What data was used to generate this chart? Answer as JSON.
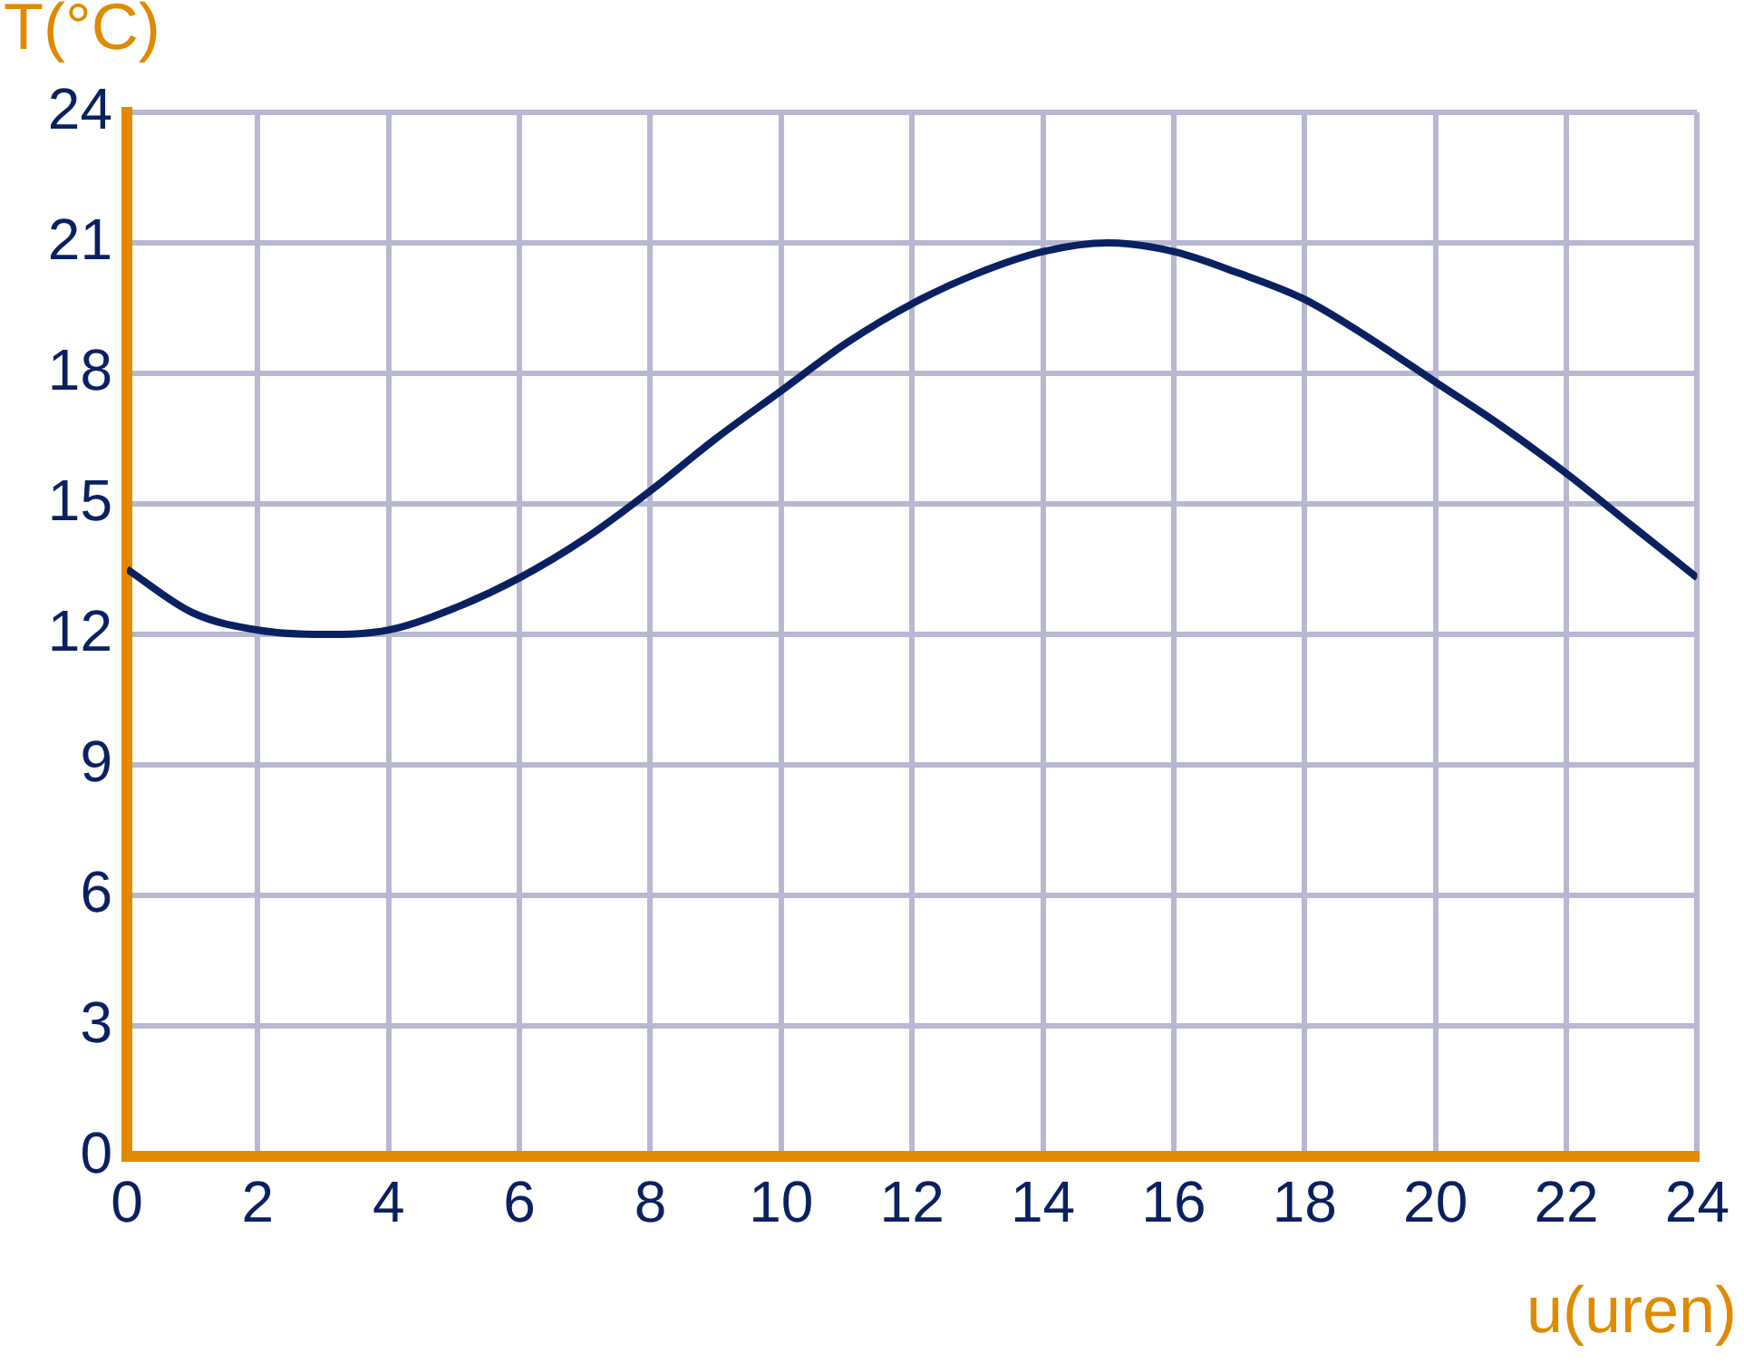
{
  "chart_data": {
    "type": "line",
    "xlabel": "u(uren)",
    "ylabel": "T(°C)",
    "x": [
      0,
      1,
      2,
      3,
      4,
      5,
      6,
      7,
      8,
      9,
      10,
      11,
      12,
      13,
      14,
      15,
      16,
      17,
      18,
      19,
      20,
      21,
      22,
      23,
      24
    ],
    "series": [
      {
        "color": "#0a2060",
        "values": [
          13.5,
          12.5,
          12.1,
          12,
          12.1,
          12.6,
          13.3,
          14.2,
          15.3,
          16.5,
          17.6,
          18.7,
          19.6,
          20.3,
          20.8,
          21,
          20.8,
          20.3,
          19.7,
          18.8,
          17.8,
          16.8,
          15.7,
          14.5,
          13.3
        ]
      }
    ],
    "xlim": [
      0,
      24
    ],
    "xticks": [
      0,
      2,
      4,
      6,
      8,
      10,
      12,
      14,
      16,
      18,
      20,
      22,
      24
    ],
    "ylim": [
      0,
      24
    ],
    "yticks": [
      0,
      3,
      6,
      9,
      12,
      15,
      18,
      21,
      24
    ],
    "grid": true,
    "legend": false,
    "marker": "none",
    "line_style": "solid"
  }
}
